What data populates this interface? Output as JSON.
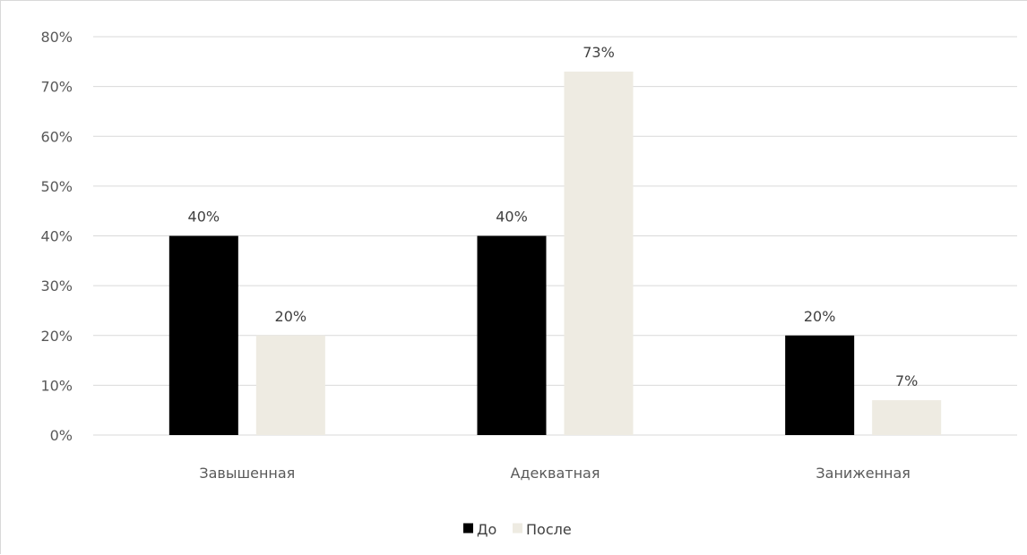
{
  "chart_data": {
    "type": "bar",
    "categories": [
      "Завышенная",
      "Адекватная",
      "Заниженная"
    ],
    "series": [
      {
        "name": "До",
        "values": [
          40,
          40,
          20
        ],
        "color": "#000000",
        "labels": [
          "40%",
          "40%",
          "20%"
        ]
      },
      {
        "name": "После",
        "values": [
          20,
          73,
          7
        ],
        "color": "#eeebe2",
        "labels": [
          "20%",
          "73%",
          "7%"
        ]
      }
    ],
    "y_ticks": [
      "0%",
      "10%",
      "20%",
      "30%",
      "40%",
      "50%",
      "60%",
      "70%",
      "80%"
    ],
    "ylim": [
      0,
      80
    ],
    "grid": true,
    "grid_color": "#d9d9d9",
    "legend_position": "bottom",
    "title": "",
    "xlabel": "",
    "ylabel": ""
  }
}
